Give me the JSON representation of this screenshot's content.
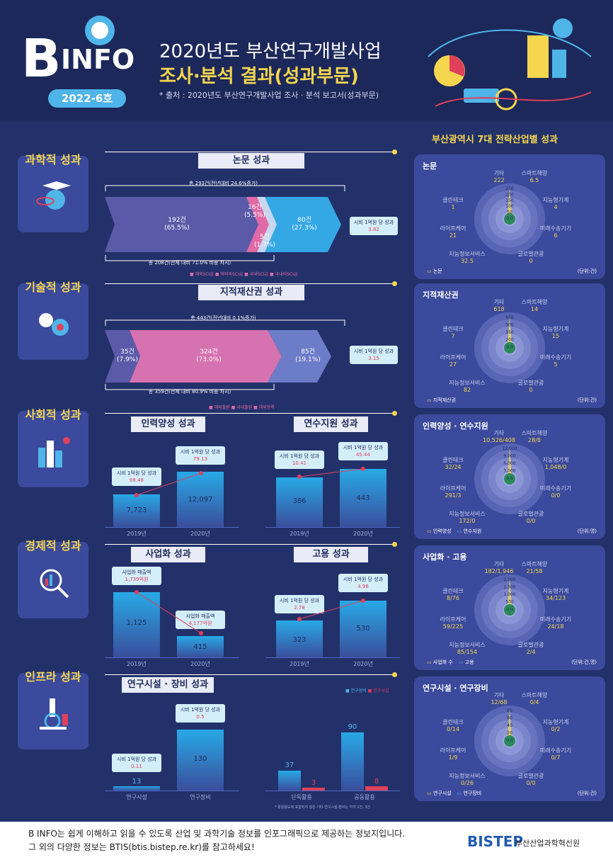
{
  "header": {
    "logo_b": "B",
    "logo_info": "INFO",
    "issue": "2022-6호",
    "title_line1": "2020년도 부산연구개발사업",
    "title_line2": "조사·분석 결과(성과부문)",
    "source": "* 출처 : 2020년도 부산연구개발사업 조사 · 분석 보고서(성과부문)"
  },
  "right_header": "부산광역시 7대 전략산업별 성과",
  "categories": {
    "science": "과학적 성과",
    "tech": "기술적 성과",
    "social": "사회적 성과",
    "econ": "경제적 성과",
    "infra": "인프라 성과"
  },
  "paper": {
    "title": "논문 성과",
    "total": "총 293건(전년대비 24.6%증가)",
    "sub": "총 208건(전체 대비 71.0% 비중 차지)",
    "a1": "192건\n(65.5%)",
    "a2": "16건\n(5.5%)",
    "a3": "5건\n(1.7%)",
    "a4": "80건\n(27.3%)",
    "callout": "시비 1억원 당 성과",
    "callout_v": "3.82",
    "legend": [
      "해외SCI급",
      "해외비SCI급",
      "국내SCI급",
      "국내비SCI급"
    ]
  },
  "ip": {
    "title": "지적재산권 성과",
    "total": "총 443건(전년대비 0.1%증가)",
    "sub": "총 359건(전체 대비 80.9% 비중 차지)",
    "a1": "35건\n(7.9%)",
    "a2": "324건\n(73.0%)",
    "a3": "85건\n(19.1%)",
    "callout": "시비 1억원 당 성과",
    "callout_v": "3.15",
    "legend": [
      "해외출원",
      "국내출원",
      "해외등록"
    ]
  },
  "hr": {
    "title": "인력양성 성과",
    "c1": "시비 1억원 당 성과",
    "v1": "68.48",
    "c2": "시비 1억원 당 성과",
    "v2": "79.13",
    "b1": "7,723",
    "b2": "12,097",
    "y1": "2019년",
    "y2": "2020년"
  },
  "train": {
    "title": "연수지원 성과",
    "c1": "시비 1억원 당 성과",
    "v1": "10.41",
    "c2": "시비 1억원 당 성과",
    "v2": "45.44",
    "b1": "386",
    "b2": "443",
    "y1": "2019년",
    "y2": "2020년"
  },
  "comm": {
    "title": "사업화 성과",
    "c1": "사업화 매출액",
    "v1": "1,739억원",
    "c2": "사업화 매출액",
    "v2": "4,177억원",
    "b1": "1,125",
    "b2": "415",
    "y1": "2019년",
    "y2": "2020년"
  },
  "emp": {
    "title": "고용 성과",
    "c1": "시비 1억원 당 성과",
    "v1": "2.78",
    "c2": "시비 1억원 당 성과",
    "v2": "4.98",
    "b1": "323",
    "b2": "530",
    "y1": "2019년",
    "y2": "2020년"
  },
  "facility": {
    "title": "연구시설 · 장비 성과",
    "legend": [
      "연구장비",
      "연구시설"
    ],
    "c1": "시비 1억원 당 성과",
    "v1": "0.11",
    "c2": "시비 1억원 당 성과",
    "v2": "0.5",
    "b1": "13",
    "b2": "130",
    "x1": "연구시설",
    "x2": "연구장비",
    "g1a": "37",
    "g1b": "3",
    "g2a": "90",
    "g2b": "8",
    "x3": "단독활용",
    "x4": "공동활용",
    "note": "* 활용용도에 포함되지 않은 기타 연구시설·장비는 각각 2건, 3건"
  },
  "panels": [
    {
      "title": "논문",
      "labels": [
        [
          "기타",
          "222"
        ],
        [
          "스마트해양",
          "6.5"
        ],
        [
          "클린테크",
          "1"
        ],
        [
          "지능형기계",
          "4"
        ],
        [
          "라이프케어",
          "21"
        ],
        [
          "미래수송기기",
          "6"
        ],
        [
          "지능정보서비스",
          "32.5"
        ],
        [
          "글로벌관광",
          "0"
        ]
      ],
      "ticks": [
        "250",
        "200",
        "150",
        "100",
        "50",
        "0.0"
      ],
      "legend": [
        "논문"
      ],
      "unit": "(단위:건)"
    },
    {
      "title": "지적재산권",
      "labels": [
        [
          "기타",
          "618"
        ],
        [
          "스마트해양",
          "14"
        ],
        [
          "클린테크",
          "7"
        ],
        [
          "지능형기계",
          "15"
        ],
        [
          "라이프케어",
          "27"
        ],
        [
          "미래수송기기",
          "5"
        ],
        [
          "지능정보서비스",
          "82"
        ],
        [
          "글로벌관광",
          "0"
        ]
      ],
      "ticks": [
        "650",
        "500",
        "350",
        "200",
        "0.0"
      ],
      "legend": [
        "지적재산권"
      ],
      "unit": "(단위:건)"
    },
    {
      "title": "인력양성 · 연수지원",
      "labels": [
        [
          "기타",
          "10,526/408"
        ],
        [
          "스마트해양",
          "28/8"
        ],
        [
          "클린테크",
          "32/24"
        ],
        [
          "지능형기계",
          "1,048/0"
        ],
        [
          "라이프케어",
          "291/3"
        ],
        [
          "미래수송기기",
          "0/0"
        ],
        [
          "지능정보서비스",
          "172/0"
        ],
        [
          "글로벌관광",
          "0/0"
        ]
      ],
      "ticks": [
        "12,000",
        "9,000",
        "6,000",
        "3,000",
        "0.0"
      ],
      "legend": [
        "인력양성",
        "연수지원"
      ],
      "unit": "(단위:명)"
    },
    {
      "title": "사업화 · 고용",
      "labels": [
        [
          "기타",
          "182/1,946"
        ],
        [
          "스마트해양",
          "21/58"
        ],
        [
          "클린테크",
          "8/76"
        ],
        [
          "지능형기계",
          "34/123"
        ],
        [
          "라이프케어",
          "59/225"
        ],
        [
          "미래수송기기",
          "24/18"
        ],
        [
          "지능정보서비스",
          "85/154"
        ],
        [
          "글로벌관광",
          "2/4"
        ]
      ],
      "ticks": [
        "2,000",
        "1,500",
        "1,000",
        "500",
        "0.0"
      ],
      "legend": [
        "사업화 수",
        "고용"
      ],
      "unit": "(단위:건,명)"
    },
    {
      "title": "연구시설 · 연구장비",
      "labels": [
        [
          "기타",
          "12/68"
        ],
        [
          "스마트해양",
          "0/4"
        ],
        [
          "클린테크",
          "0/14"
        ],
        [
          "지능형기계",
          "0/2"
        ],
        [
          "라이프케어",
          "1/9"
        ],
        [
          "미래수송기기",
          "0/7"
        ],
        [
          "지능정보서비스",
          "0/26"
        ],
        [
          "글로벌관광",
          "0/0"
        ]
      ],
      "ticks": [
        "80",
        "60",
        "40",
        "20",
        "0.0"
      ],
      "legend": [
        "연구시설",
        "연구장비"
      ],
      "unit": "(단위:건)"
    }
  ],
  "footer": {
    "line1": "B INFO는 쉽게 이해하고 읽을 수 있도록 산업 및 과학기술 정보를 인포그래픽으로 제공하는 정보지입니다.",
    "line2": "그 외의 다양한 정보는 BTIS(btis.bistep.re.kr)를 참고하세요!",
    "logo": "BISTEP",
    "org": "부산산업과학혁신원"
  }
}
